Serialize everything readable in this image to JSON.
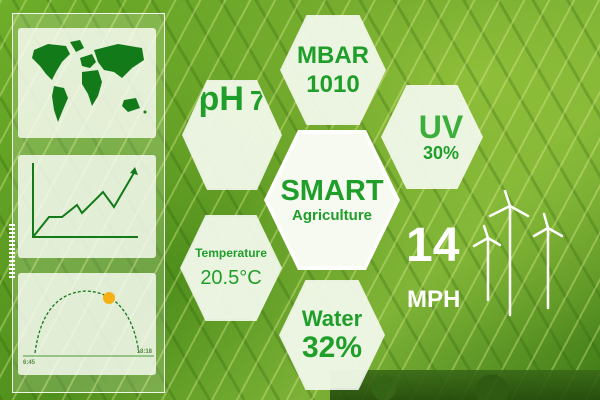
{
  "sidebar": {
    "sunrise_time": "6:45",
    "sunset_time": "18:18"
  },
  "hexagons": {
    "mbar": {
      "label": "MBAR",
      "value": "1010"
    },
    "ph": {
      "label": "pH",
      "value": "7"
    },
    "uv": {
      "label": "UV",
      "value": "30%"
    },
    "center": {
      "title": "SMART",
      "subtitle": "Agriculture"
    },
    "temperature": {
      "label": "Temperature",
      "value": "20.5°C"
    },
    "water": {
      "label": "Water",
      "value": "32%"
    }
  },
  "wind": {
    "value": "14",
    "unit": "MPH"
  },
  "colors": {
    "accent_green": "#1f9e2a",
    "dark_green": "#137a1a",
    "sun": "#f5b014"
  },
  "icons": [
    "world-map-icon",
    "line-chart-icon",
    "sun-arc-icon",
    "wind-turbine-icon"
  ]
}
